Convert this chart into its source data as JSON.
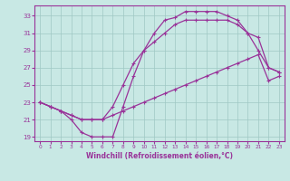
{
  "xlabel": "Windchill (Refroidissement éolien,°C)",
  "xlim": [
    -0.5,
    23.5
  ],
  "ylim": [
    18.5,
    34.2
  ],
  "xticks": [
    0,
    1,
    2,
    3,
    4,
    5,
    6,
    7,
    8,
    9,
    10,
    11,
    12,
    13,
    14,
    15,
    16,
    17,
    18,
    19,
    20,
    21,
    22,
    23
  ],
  "yticks": [
    19,
    21,
    23,
    25,
    27,
    29,
    31,
    33
  ],
  "bg_color": "#c8e8e4",
  "grid_color": "#9fc8c4",
  "line_color": "#993399",
  "lines": [
    {
      "x": [
        0,
        1,
        2,
        3,
        4,
        5,
        6,
        7,
        8,
        9,
        10,
        11,
        12,
        13,
        14,
        15,
        16,
        17,
        18,
        19,
        20,
        21,
        22,
        23
      ],
      "y": [
        23.0,
        22.5,
        22.0,
        21.0,
        19.5,
        19.0,
        19.0,
        19.0,
        22.5,
        26.0,
        29.0,
        31.0,
        32.5,
        32.8,
        33.5,
        33.5,
        33.5,
        33.5,
        33.0,
        32.5,
        31.0,
        30.5,
        27.0,
        26.5
      ]
    },
    {
      "x": [
        0,
        1,
        2,
        3,
        4,
        5,
        6,
        7,
        8,
        9,
        10,
        11,
        12,
        13,
        14,
        15,
        16,
        17,
        18,
        19,
        20,
        21,
        22,
        23
      ],
      "y": [
        23.0,
        22.5,
        22.0,
        21.5,
        21.0,
        21.0,
        21.0,
        22.5,
        25.0,
        27.5,
        29.0,
        30.0,
        31.0,
        32.0,
        32.5,
        32.5,
        32.5,
        32.5,
        32.5,
        32.0,
        31.0,
        29.0,
        27.0,
        26.5
      ]
    },
    {
      "x": [
        0,
        1,
        2,
        3,
        4,
        5,
        6,
        7,
        8,
        9,
        10,
        11,
        12,
        13,
        14,
        15,
        16,
        17,
        18,
        19,
        20,
        21,
        22,
        23
      ],
      "y": [
        23.0,
        22.5,
        22.0,
        21.5,
        21.0,
        21.0,
        21.0,
        21.5,
        22.0,
        22.5,
        23.0,
        23.5,
        24.0,
        24.5,
        25.0,
        25.5,
        26.0,
        26.5,
        27.0,
        27.5,
        28.0,
        28.5,
        25.5,
        26.0
      ]
    }
  ]
}
